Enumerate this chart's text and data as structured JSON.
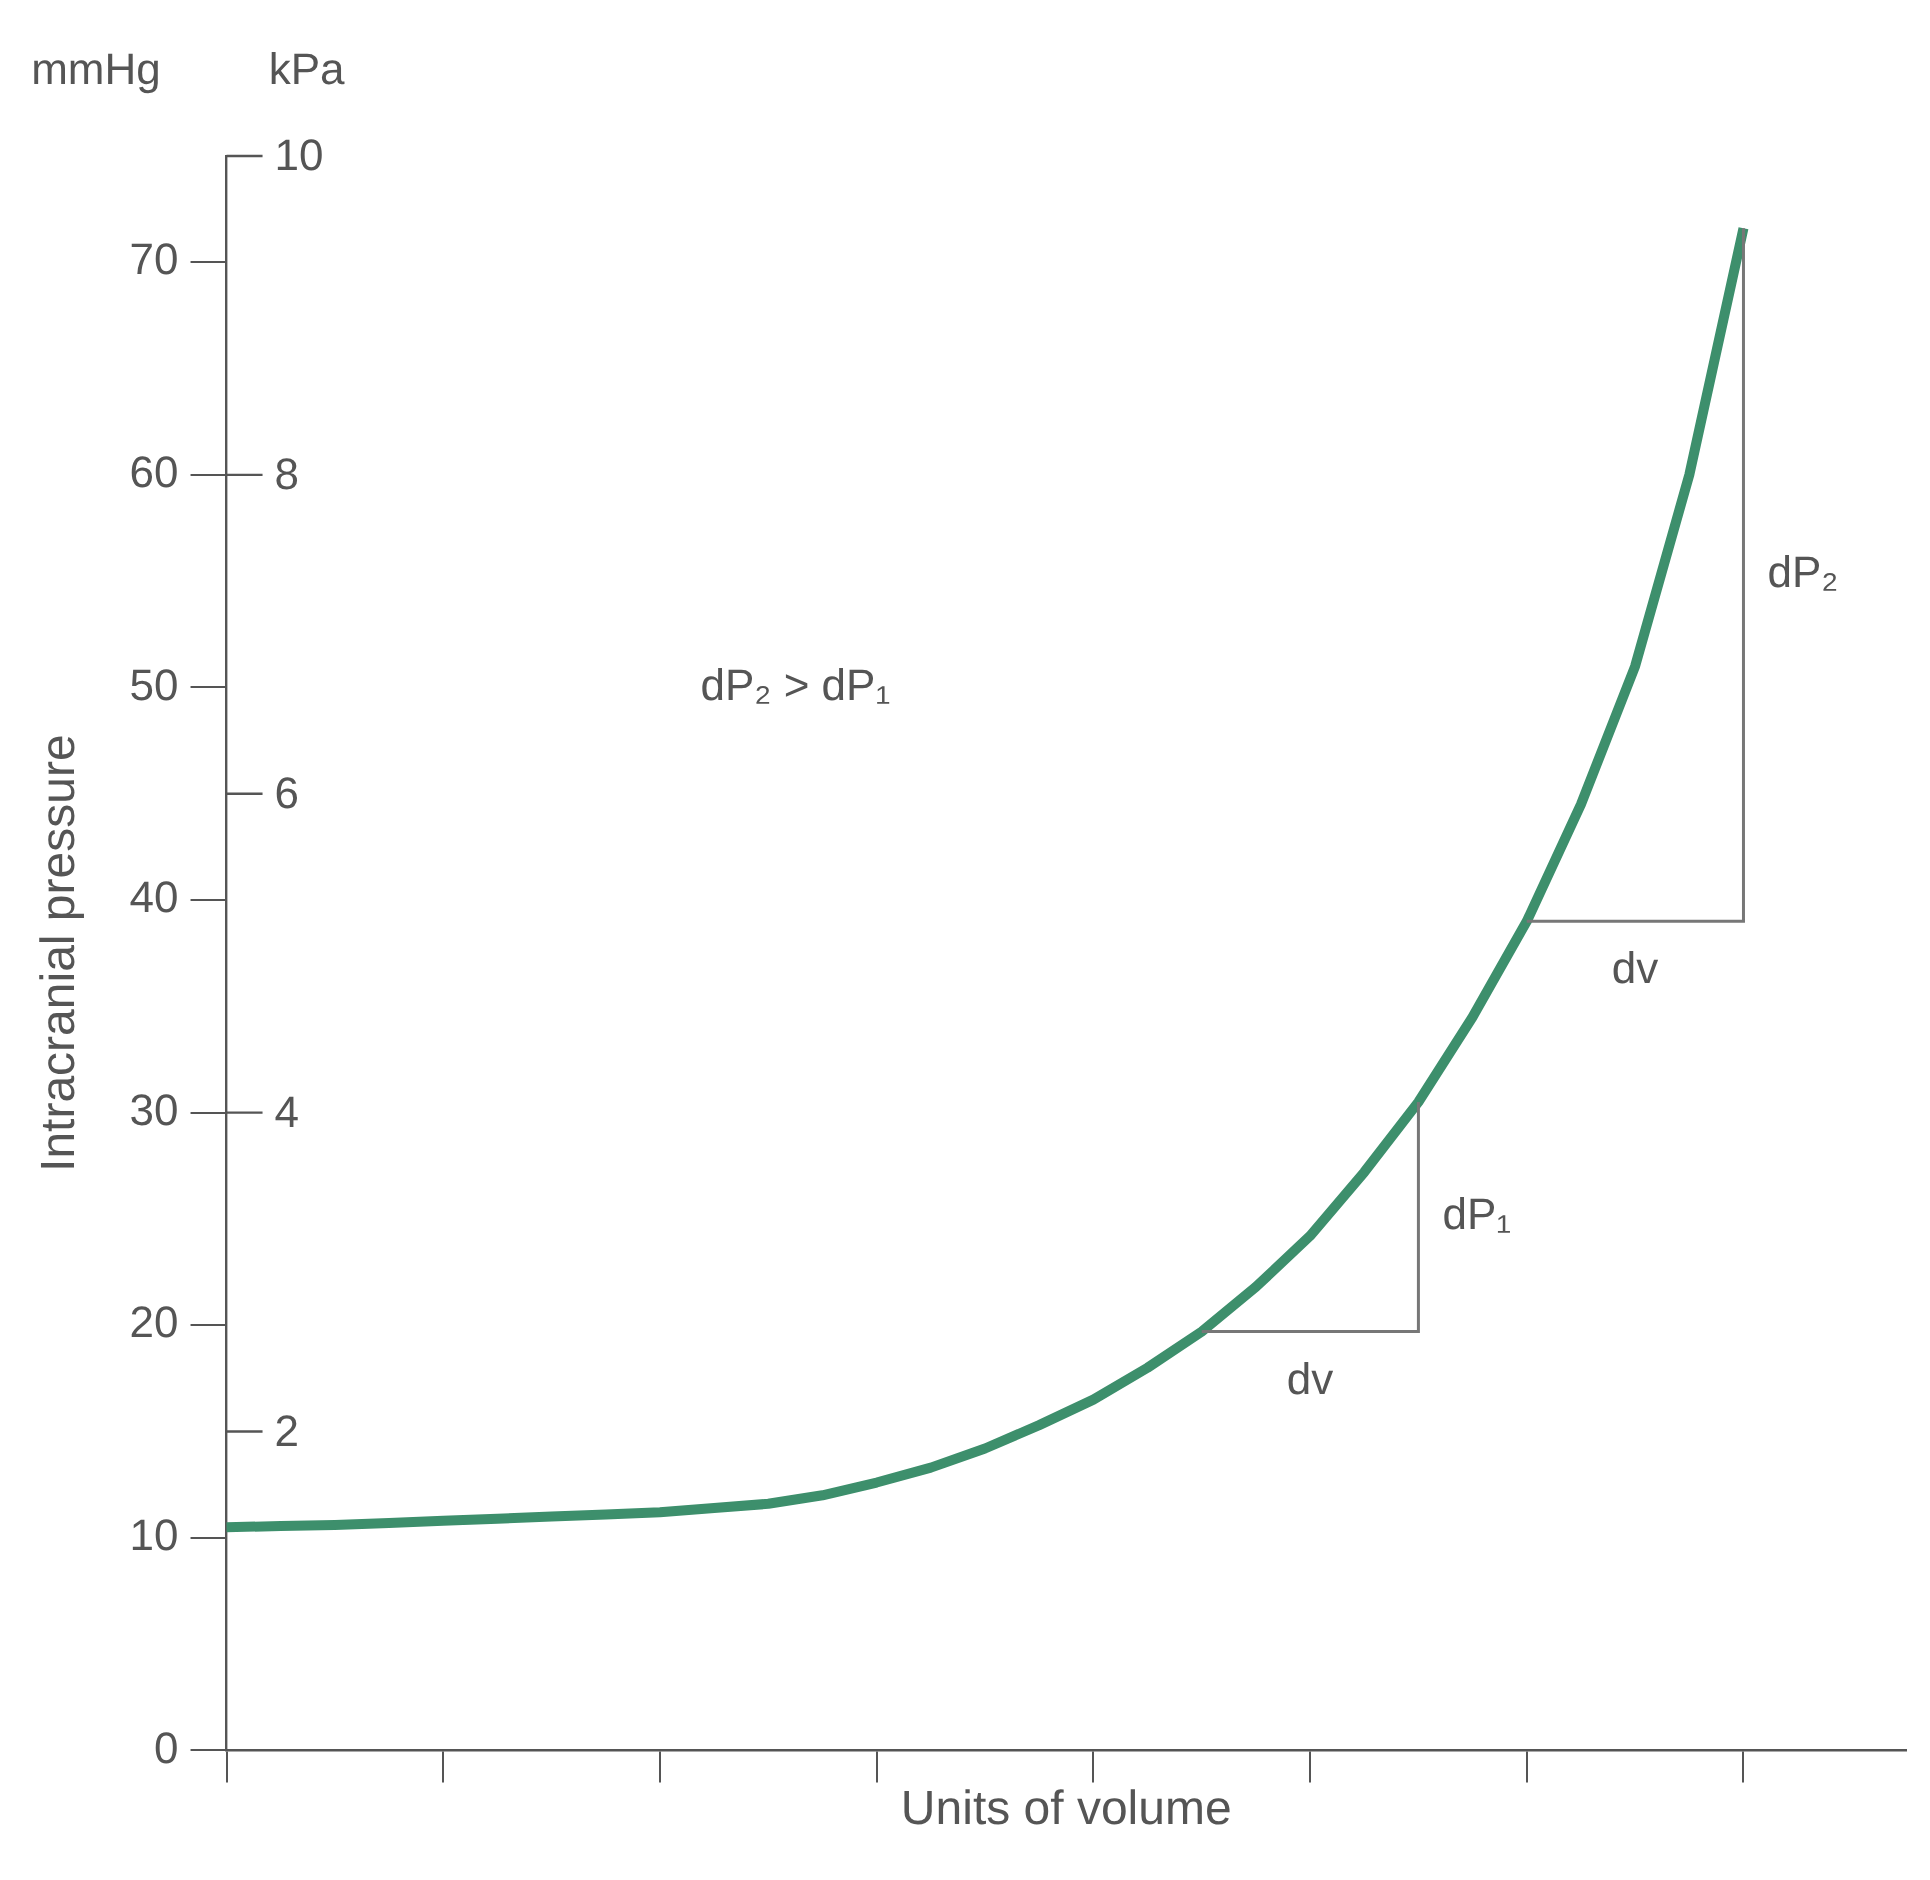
{
  "chart_data": {
    "type": "line",
    "xlabel": "Units of volume",
    "ylabel": "Intracranial pressure",
    "categories": [
      null,
      null,
      null,
      null,
      null,
      null,
      null,
      null,
      null,
      null,
      null,
      null,
      null,
      null,
      null,
      null,
      null,
      null,
      null,
      null,
      null,
      null,
      null,
      null,
      null,
      null,
      null,
      null,
      null,
      null,
      null,
      null
    ],
    "ylim": [
      0,
      75
    ],
    "yticks": [
      0,
      10,
      20,
      30,
      40,
      50,
      60,
      70
    ],
    "y2lim": [
      0,
      10
    ],
    "y2ticks": [
      2,
      4,
      6,
      8,
      10
    ],
    "tick_labels": "y",
    "grid": false,
    "legend": false,
    "marker": "none",
    "series": [
      {
        "color": "#3d8f6c",
        "values": [
          10.5,
          10.55,
          10.6,
          10.7,
          10.8,
          10.9,
          11.0,
          11.1,
          11.2,
          11.4,
          11.6,
          12.0,
          12.6,
          13.3,
          14.2,
          15.3,
          16.5,
          18.0,
          19.7,
          21.8,
          24.2,
          27.2,
          30.5,
          34.5,
          39,
          44.5,
          51,
          60,
          71.6,
          null,
          null,
          null
        ]
      }
    ],
    "annotations": [
      "mmHg",
      "kPa",
      "dP₂ > dP₁",
      "dv",
      "dP₁",
      "dv",
      "dP₂"
    ]
  }
}
